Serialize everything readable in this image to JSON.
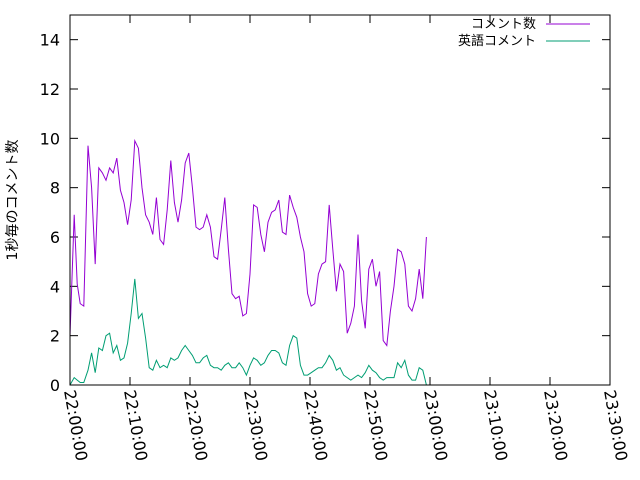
{
  "chart_data": {
    "type": "line",
    "ylabel": "1秒毎のコメント数",
    "xlabel": "",
    "title": "",
    "ylim": [
      0,
      15
    ],
    "xlim_minutes": [
      0,
      90
    ],
    "y_ticks": [
      {
        "value": 0,
        "label": "0"
      },
      {
        "value": 2,
        "label": "2"
      },
      {
        "value": 4,
        "label": "4"
      },
      {
        "value": 6,
        "label": "6"
      },
      {
        "value": 8,
        "label": "8"
      },
      {
        "value": 10,
        "label": "10"
      },
      {
        "value": 12,
        "label": "12"
      },
      {
        "value": 14,
        "label": "14"
      }
    ],
    "x_ticks": [
      {
        "value": 0,
        "label": "22:00:00"
      },
      {
        "value": 10,
        "label": "22:10:00"
      },
      {
        "value": 20,
        "label": "22:20:00"
      },
      {
        "value": 30,
        "label": "22:30:00"
      },
      {
        "value": 40,
        "label": "22:40:00"
      },
      {
        "value": 50,
        "label": "22:50:00"
      },
      {
        "value": 60,
        "label": "23:00:00"
      },
      {
        "value": 70,
        "label": "23:10:00"
      },
      {
        "value": 80,
        "label": "23:20:00"
      },
      {
        "value": 90,
        "label": "23:30:00"
      }
    ],
    "legend_position": "top-right",
    "series": [
      {
        "name": "コメント数",
        "color": "#9400d3",
        "points": [
          [
            0.0,
            2.0
          ],
          [
            0.7,
            6.9
          ],
          [
            1.2,
            4.1
          ],
          [
            1.7,
            3.3
          ],
          [
            2.3,
            3.2
          ],
          [
            3.0,
            9.7
          ],
          [
            3.6,
            8.0
          ],
          [
            4.2,
            4.9
          ],
          [
            4.8,
            8.8
          ],
          [
            5.4,
            8.6
          ],
          [
            6.0,
            8.3
          ],
          [
            6.6,
            8.8
          ],
          [
            7.2,
            8.6
          ],
          [
            7.8,
            9.2
          ],
          [
            8.4,
            7.9
          ],
          [
            9.0,
            7.4
          ],
          [
            9.6,
            6.5
          ],
          [
            10.2,
            7.5
          ],
          [
            10.8,
            9.9
          ],
          [
            11.4,
            9.6
          ],
          [
            12.0,
            8.0
          ],
          [
            12.6,
            6.9
          ],
          [
            13.2,
            6.6
          ],
          [
            13.8,
            6.1
          ],
          [
            14.4,
            7.6
          ],
          [
            15.0,
            5.9
          ],
          [
            15.6,
            5.7
          ],
          [
            16.2,
            7.1
          ],
          [
            16.8,
            9.1
          ],
          [
            17.4,
            7.4
          ],
          [
            18.0,
            6.6
          ],
          [
            18.6,
            7.5
          ],
          [
            19.2,
            9.0
          ],
          [
            19.8,
            9.4
          ],
          [
            20.4,
            8.0
          ],
          [
            21.0,
            6.4
          ],
          [
            21.6,
            6.3
          ],
          [
            22.2,
            6.4
          ],
          [
            22.8,
            6.9
          ],
          [
            23.4,
            6.4
          ],
          [
            24.0,
            5.2
          ],
          [
            24.6,
            5.1
          ],
          [
            25.2,
            6.3
          ],
          [
            25.8,
            7.6
          ],
          [
            26.4,
            5.5
          ],
          [
            27.0,
            3.7
          ],
          [
            27.6,
            3.5
          ],
          [
            28.2,
            3.6
          ],
          [
            28.8,
            2.8
          ],
          [
            29.4,
            2.9
          ],
          [
            30.0,
            4.5
          ],
          [
            30.6,
            7.3
          ],
          [
            31.2,
            7.2
          ],
          [
            31.8,
            6.1
          ],
          [
            32.4,
            5.4
          ],
          [
            33.0,
            6.6
          ],
          [
            33.6,
            7.0
          ],
          [
            34.2,
            7.1
          ],
          [
            34.8,
            7.5
          ],
          [
            35.4,
            6.2
          ],
          [
            36.0,
            6.1
          ],
          [
            36.6,
            7.7
          ],
          [
            37.2,
            7.2
          ],
          [
            37.8,
            6.8
          ],
          [
            38.4,
            6.0
          ],
          [
            39.0,
            5.4
          ],
          [
            39.6,
            3.7
          ],
          [
            40.2,
            3.2
          ],
          [
            40.8,
            3.3
          ],
          [
            41.4,
            4.5
          ],
          [
            42.0,
            4.9
          ],
          [
            42.6,
            5.0
          ],
          [
            43.2,
            7.3
          ],
          [
            43.8,
            5.5
          ],
          [
            44.4,
            3.8
          ],
          [
            45.0,
            4.9
          ],
          [
            45.6,
            4.6
          ],
          [
            46.2,
            2.1
          ],
          [
            46.8,
            2.5
          ],
          [
            47.4,
            3.2
          ],
          [
            48.0,
            6.1
          ],
          [
            48.6,
            3.4
          ],
          [
            49.2,
            2.3
          ],
          [
            49.8,
            4.7
          ],
          [
            50.4,
            5.1
          ],
          [
            51.0,
            4.0
          ],
          [
            51.6,
            4.6
          ],
          [
            52.2,
            1.8
          ],
          [
            52.8,
            1.6
          ],
          [
            53.4,
            3.0
          ],
          [
            54.0,
            4.0
          ],
          [
            54.6,
            5.5
          ],
          [
            55.2,
            5.4
          ],
          [
            55.8,
            4.9
          ],
          [
            56.4,
            3.2
          ],
          [
            57.0,
            3.0
          ],
          [
            57.6,
            3.5
          ],
          [
            58.2,
            4.7
          ],
          [
            58.8,
            3.5
          ],
          [
            59.4,
            6.0
          ]
        ]
      },
      {
        "name": "英語コメント",
        "color": "#009e73",
        "points": [
          [
            0.0,
            0.0
          ],
          [
            0.7,
            0.3
          ],
          [
            1.2,
            0.2
          ],
          [
            1.7,
            0.1
          ],
          [
            2.3,
            0.1
          ],
          [
            3.0,
            0.6
          ],
          [
            3.6,
            1.3
          ],
          [
            4.2,
            0.5
          ],
          [
            4.8,
            1.5
          ],
          [
            5.4,
            1.4
          ],
          [
            6.0,
            2.0
          ],
          [
            6.6,
            2.1
          ],
          [
            7.2,
            1.3
          ],
          [
            7.8,
            1.6
          ],
          [
            8.4,
            1.0
          ],
          [
            9.0,
            1.1
          ],
          [
            9.6,
            1.7
          ],
          [
            10.2,
            2.9
          ],
          [
            10.8,
            4.3
          ],
          [
            11.4,
            2.7
          ],
          [
            12.0,
            2.9
          ],
          [
            12.6,
            1.9
          ],
          [
            13.2,
            0.7
          ],
          [
            13.8,
            0.6
          ],
          [
            14.4,
            1.0
          ],
          [
            15.0,
            0.7
          ],
          [
            15.6,
            0.8
          ],
          [
            16.2,
            0.7
          ],
          [
            16.8,
            1.1
          ],
          [
            17.4,
            1.0
          ],
          [
            18.0,
            1.1
          ],
          [
            18.6,
            1.4
          ],
          [
            19.2,
            1.6
          ],
          [
            19.8,
            1.4
          ],
          [
            20.4,
            1.2
          ],
          [
            21.0,
            0.9
          ],
          [
            21.6,
            0.9
          ],
          [
            22.2,
            1.1
          ],
          [
            22.8,
            1.2
          ],
          [
            23.4,
            0.8
          ],
          [
            24.0,
            0.7
          ],
          [
            24.6,
            0.7
          ],
          [
            25.2,
            0.6
          ],
          [
            25.8,
            0.8
          ],
          [
            26.4,
            0.9
          ],
          [
            27.0,
            0.7
          ],
          [
            27.6,
            0.7
          ],
          [
            28.2,
            0.9
          ],
          [
            28.8,
            0.7
          ],
          [
            29.4,
            0.4
          ],
          [
            30.0,
            0.8
          ],
          [
            30.6,
            1.1
          ],
          [
            31.2,
            1.0
          ],
          [
            31.8,
            0.8
          ],
          [
            32.4,
            0.9
          ],
          [
            33.0,
            1.2
          ],
          [
            33.6,
            1.4
          ],
          [
            34.2,
            1.4
          ],
          [
            34.8,
            1.3
          ],
          [
            35.4,
            0.9
          ],
          [
            36.0,
            0.8
          ],
          [
            36.6,
            1.6
          ],
          [
            37.2,
            2.0
          ],
          [
            37.8,
            1.9
          ],
          [
            38.4,
            0.8
          ],
          [
            39.0,
            0.4
          ],
          [
            39.6,
            0.4
          ],
          [
            40.2,
            0.5
          ],
          [
            40.8,
            0.6
          ],
          [
            41.4,
            0.7
          ],
          [
            42.0,
            0.7
          ],
          [
            42.6,
            0.9
          ],
          [
            43.2,
            1.2
          ],
          [
            43.8,
            1.0
          ],
          [
            44.4,
            0.6
          ],
          [
            45.0,
            0.7
          ],
          [
            45.6,
            0.4
          ],
          [
            46.2,
            0.3
          ],
          [
            46.8,
            0.2
          ],
          [
            47.4,
            0.3
          ],
          [
            48.0,
            0.4
          ],
          [
            48.6,
            0.3
          ],
          [
            49.2,
            0.5
          ],
          [
            49.8,
            0.8
          ],
          [
            50.4,
            0.6
          ],
          [
            51.0,
            0.5
          ],
          [
            51.6,
            0.3
          ],
          [
            52.2,
            0.2
          ],
          [
            52.8,
            0.3
          ],
          [
            53.4,
            0.3
          ],
          [
            54.0,
            0.3
          ],
          [
            54.6,
            0.9
          ],
          [
            55.2,
            0.7
          ],
          [
            55.8,
            1.0
          ],
          [
            56.4,
            0.4
          ],
          [
            57.0,
            0.2
          ],
          [
            57.6,
            0.2
          ],
          [
            58.2,
            0.7
          ],
          [
            58.8,
            0.6
          ],
          [
            59.4,
            0.0
          ]
        ]
      }
    ]
  }
}
